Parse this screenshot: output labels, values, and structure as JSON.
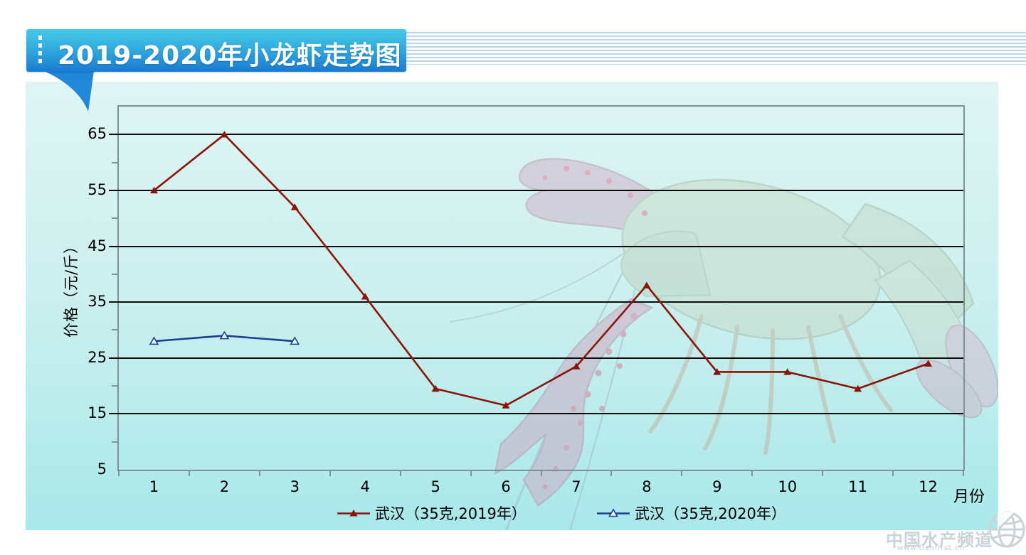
{
  "watermark": {
    "brand": "中国水产频道",
    "url": "www.fishfirst.cn"
  },
  "chart_data": {
    "type": "line",
    "title": "2019-2020年小龙虾走势图",
    "xlabel": "月份",
    "ylabel": "价格（元/斤）",
    "x": [
      1,
      2,
      3,
      4,
      5,
      6,
      7,
      8,
      9,
      10,
      11,
      12
    ],
    "ylim": [
      5,
      70
    ],
    "y_gridlines": [
      15,
      25,
      35,
      45,
      55,
      65
    ],
    "y_minor_ticks": [
      10,
      20,
      30,
      40,
      50,
      60
    ],
    "y_tick_labels": [
      65,
      55,
      45,
      35,
      25,
      15,
      5
    ],
    "grid": true,
    "legend_position": "bottom",
    "series": [
      {
        "name": "武汉（35克,2019年）",
        "color": "#8b1309",
        "marker": "triangle-filled",
        "values": [
          55,
          65,
          52,
          36,
          19.5,
          16.5,
          23.5,
          38,
          22.5,
          22.5,
          19.5,
          24
        ]
      },
      {
        "name": "武汉（35克,2020年）",
        "color": "#1d3d94",
        "marker": "triangle-open",
        "values": [
          28,
          29,
          28,
          null,
          null,
          null,
          null,
          null,
          null,
          null,
          null,
          null
        ]
      }
    ]
  }
}
